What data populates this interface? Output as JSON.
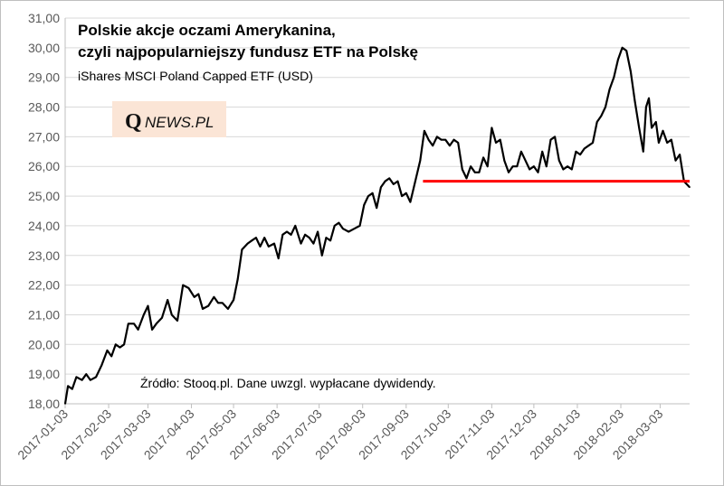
{
  "chart_data": {
    "type": "line",
    "title": "Polskie akcje oczami Amerykanina,",
    "title_line2": "czyli najpopularniejszy fundusz ETF na Polskę",
    "subtitle": "iShares MSCI Poland Capped ETF (USD)",
    "source_note": "Źródło: Stooq.pl. Dane uwzgl. wypłacane dywidendy.",
    "logo_q": "Q",
    "logo_rest": "NEWS.PL",
    "ylim": [
      18,
      31
    ],
    "y_ticks": [
      "18,00",
      "19,00",
      "20,00",
      "21,00",
      "22,00",
      "23,00",
      "24,00",
      "25,00",
      "26,00",
      "27,00",
      "28,00",
      "29,00",
      "30,00",
      "31,00"
    ],
    "x_ticks": [
      "2017-01-03",
      "2017-02-03",
      "2017-03-03",
      "2017-04-03",
      "2017-05-03",
      "2017-06-03",
      "2017-07-03",
      "2017-08-03",
      "2017-09-03",
      "2017-10-03",
      "2017-11-03",
      "2017-12-03",
      "2018-01-03",
      "2018-02-03",
      "2018-03-03"
    ],
    "x_range": [
      "2017-01-03",
      "2018-03-24"
    ],
    "grid": "horizontal",
    "line_color": "#000000",
    "support_line": {
      "value": 25.5,
      "start": "2017-09-15",
      "end": "2018-03-24",
      "color": "#ff0000"
    },
    "series": [
      {
        "values": [
          [
            "2017-01-03",
            18.0
          ],
          [
            "2017-01-05",
            18.6
          ],
          [
            "2017-01-08",
            18.5
          ],
          [
            "2017-01-11",
            18.9
          ],
          [
            "2017-01-15",
            18.8
          ],
          [
            "2017-01-18",
            19.0
          ],
          [
            "2017-01-21",
            18.8
          ],
          [
            "2017-01-25",
            18.9
          ],
          [
            "2017-01-29",
            19.3
          ],
          [
            "2017-02-02",
            19.8
          ],
          [
            "2017-02-05",
            19.6
          ],
          [
            "2017-02-08",
            20.0
          ],
          [
            "2017-02-11",
            19.9
          ],
          [
            "2017-02-14",
            20.0
          ],
          [
            "2017-02-17",
            20.7
          ],
          [
            "2017-02-21",
            20.7
          ],
          [
            "2017-02-24",
            20.5
          ],
          [
            "2017-02-28",
            21.0
          ],
          [
            "2017-03-03",
            21.3
          ],
          [
            "2017-03-06",
            20.5
          ],
          [
            "2017-03-09",
            20.7
          ],
          [
            "2017-03-13",
            20.9
          ],
          [
            "2017-03-17",
            21.5
          ],
          [
            "2017-03-20",
            21.0
          ],
          [
            "2017-03-24",
            20.8
          ],
          [
            "2017-03-28",
            22.0
          ],
          [
            "2017-04-01",
            21.9
          ],
          [
            "2017-04-05",
            21.6
          ],
          [
            "2017-04-08",
            21.7
          ],
          [
            "2017-04-11",
            21.2
          ],
          [
            "2017-04-15",
            21.3
          ],
          [
            "2017-04-19",
            21.6
          ],
          [
            "2017-04-22",
            21.4
          ],
          [
            "2017-04-25",
            21.4
          ],
          [
            "2017-04-29",
            21.2
          ],
          [
            "2017-05-03",
            21.5
          ],
          [
            "2017-05-06",
            22.2
          ],
          [
            "2017-05-09",
            23.2
          ],
          [
            "2017-05-13",
            23.4
          ],
          [
            "2017-05-16",
            23.5
          ],
          [
            "2017-05-19",
            23.6
          ],
          [
            "2017-05-22",
            23.3
          ],
          [
            "2017-05-25",
            23.6
          ],
          [
            "2017-05-28",
            23.3
          ],
          [
            "2017-06-01",
            23.4
          ],
          [
            "2017-06-04",
            22.9
          ],
          [
            "2017-06-07",
            23.7
          ],
          [
            "2017-06-10",
            23.8
          ],
          [
            "2017-06-13",
            23.7
          ],
          [
            "2017-06-16",
            24.0
          ],
          [
            "2017-06-20",
            23.4
          ],
          [
            "2017-06-23",
            23.7
          ],
          [
            "2017-06-26",
            23.6
          ],
          [
            "2017-06-29",
            23.4
          ],
          [
            "2017-07-02",
            23.8
          ],
          [
            "2017-07-05",
            23.0
          ],
          [
            "2017-07-08",
            23.6
          ],
          [
            "2017-07-11",
            23.5
          ],
          [
            "2017-07-14",
            24.0
          ],
          [
            "2017-07-17",
            24.1
          ],
          [
            "2017-07-20",
            23.9
          ],
          [
            "2017-07-24",
            23.8
          ],
          [
            "2017-07-28",
            23.9
          ],
          [
            "2017-08-01",
            24.0
          ],
          [
            "2017-08-04",
            24.7
          ],
          [
            "2017-08-07",
            25.0
          ],
          [
            "2017-08-10",
            25.1
          ],
          [
            "2017-08-13",
            24.6
          ],
          [
            "2017-08-16",
            25.3
          ],
          [
            "2017-08-19",
            25.5
          ],
          [
            "2017-08-22",
            25.6
          ],
          [
            "2017-08-25",
            25.4
          ],
          [
            "2017-08-28",
            25.5
          ],
          [
            "2017-08-31",
            25.0
          ],
          [
            "2017-09-03",
            25.1
          ],
          [
            "2017-09-06",
            24.8
          ],
          [
            "2017-09-09",
            25.4
          ],
          [
            "2017-09-13",
            26.2
          ],
          [
            "2017-09-16",
            27.2
          ],
          [
            "2017-09-19",
            26.9
          ],
          [
            "2017-09-22",
            26.7
          ],
          [
            "2017-09-25",
            27.0
          ],
          [
            "2017-09-28",
            26.9
          ],
          [
            "2017-10-01",
            26.9
          ],
          [
            "2017-10-04",
            26.7
          ],
          [
            "2017-10-07",
            26.9
          ],
          [
            "2017-10-10",
            26.8
          ],
          [
            "2017-10-13",
            25.9
          ],
          [
            "2017-10-16",
            25.6
          ],
          [
            "2017-10-19",
            26.0
          ],
          [
            "2017-10-22",
            25.8
          ],
          [
            "2017-10-25",
            25.8
          ],
          [
            "2017-10-28",
            26.3
          ],
          [
            "2017-10-31",
            26.0
          ],
          [
            "2017-11-03",
            27.3
          ],
          [
            "2017-11-06",
            26.8
          ],
          [
            "2017-11-09",
            26.9
          ],
          [
            "2017-11-12",
            26.2
          ],
          [
            "2017-11-15",
            25.8
          ],
          [
            "2017-11-18",
            26.0
          ],
          [
            "2017-11-21",
            26.0
          ],
          [
            "2017-11-24",
            26.5
          ],
          [
            "2017-11-27",
            26.2
          ],
          [
            "2017-11-30",
            25.9
          ],
          [
            "2017-12-03",
            26.0
          ],
          [
            "2017-12-06",
            25.8
          ],
          [
            "2017-12-09",
            26.5
          ],
          [
            "2017-12-12",
            26.0
          ],
          [
            "2017-12-15",
            26.9
          ],
          [
            "2017-12-18",
            27.0
          ],
          [
            "2017-12-21",
            26.2
          ],
          [
            "2017-12-24",
            25.9
          ],
          [
            "2017-12-27",
            26.0
          ],
          [
            "2017-12-30",
            25.9
          ],
          [
            "2018-01-02",
            26.5
          ],
          [
            "2018-01-05",
            26.4
          ],
          [
            "2018-01-08",
            26.6
          ],
          [
            "2018-01-11",
            26.7
          ],
          [
            "2018-01-14",
            26.8
          ],
          [
            "2018-01-17",
            27.5
          ],
          [
            "2018-01-20",
            27.7
          ],
          [
            "2018-01-23",
            28.0
          ],
          [
            "2018-01-26",
            28.6
          ],
          [
            "2018-01-29",
            29.0
          ],
          [
            "2018-02-01",
            29.6
          ],
          [
            "2018-02-04",
            30.0
          ],
          [
            "2018-02-07",
            29.9
          ],
          [
            "2018-02-10",
            29.2
          ],
          [
            "2018-02-13",
            28.2
          ],
          [
            "2018-02-16",
            27.3
          ],
          [
            "2018-02-19",
            26.5
          ],
          [
            "2018-02-21",
            28.0
          ],
          [
            "2018-02-23",
            28.3
          ],
          [
            "2018-02-25",
            27.3
          ],
          [
            "2018-02-28",
            27.5
          ],
          [
            "2018-03-02",
            26.8
          ],
          [
            "2018-03-05",
            27.2
          ],
          [
            "2018-03-08",
            26.8
          ],
          [
            "2018-03-11",
            26.9
          ],
          [
            "2018-03-14",
            26.2
          ],
          [
            "2018-03-17",
            26.4
          ],
          [
            "2018-03-20",
            25.5
          ],
          [
            "2018-03-24",
            25.3
          ]
        ]
      }
    ]
  }
}
